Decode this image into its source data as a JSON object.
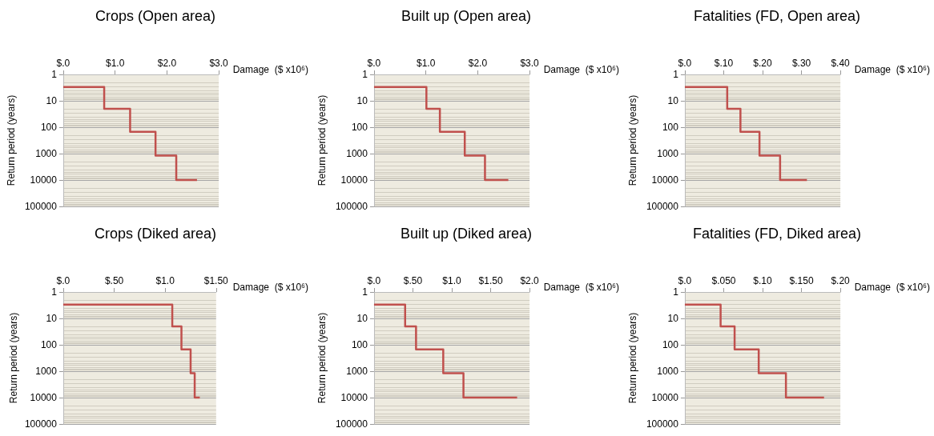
{
  "chart_data": [
    {
      "type": "step",
      "title": "Crops (Open area)",
      "xlabel": "Damage  ($ x10⁶)",
      "ylabel": "Return period (years)",
      "x": [
        0,
        0.79,
        1.29,
        1.78,
        2.18,
        2.58
      ],
      "series": [
        {
          "color": "#c0504d",
          "values": [
            3,
            20,
            150,
            1200,
            10000,
            10000
          ]
        }
      ],
      "xlim": [
        0,
        3
      ],
      "xticks": [
        {
          "value": 0,
          "label": "$.0"
        },
        {
          "value": 1,
          "label": "$1.0"
        },
        {
          "value": 2,
          "label": "$2.0"
        },
        {
          "value": 3,
          "label": "$3.0"
        }
      ],
      "ylim": [
        100000,
        1
      ],
      "yticks": [
        1,
        10,
        100,
        1000,
        10000,
        100000
      ],
      "log": "y",
      "grid": "y",
      "marker": "none",
      "line_style": "solid"
    },
    {
      "type": "step",
      "title": "Built up (Open area)",
      "xlabel": "Damage  ($ x10⁶)",
      "ylabel": "Return period (years)",
      "x": [
        0,
        1.01,
        1.27,
        1.75,
        2.14,
        2.59
      ],
      "series": [
        {
          "color": "#c0504d",
          "values": [
            3,
            20,
            150,
            1200,
            10000,
            10000
          ]
        }
      ],
      "xlim": [
        0,
        3
      ],
      "xticks": [
        {
          "value": 0,
          "label": "$.0"
        },
        {
          "value": 1,
          "label": "$1.0"
        },
        {
          "value": 2,
          "label": "$2.0"
        },
        {
          "value": 3,
          "label": "$3.0"
        }
      ],
      "ylim": [
        100000,
        1
      ],
      "yticks": [
        1,
        10,
        100,
        1000,
        10000,
        100000
      ],
      "log": "y",
      "grid": "y",
      "marker": "none",
      "line_style": "solid"
    },
    {
      "type": "step",
      "title": "Fatalities (FD, Open area)",
      "xlabel": "Damage  ($ x10⁶)",
      "ylabel": "Return period (years)",
      "x": [
        0,
        0.109,
        0.143,
        0.192,
        0.245,
        0.314
      ],
      "series": [
        {
          "color": "#c0504d",
          "values": [
            3,
            20,
            150,
            1200,
            10000,
            10000
          ]
        }
      ],
      "xlim": [
        0,
        0.4
      ],
      "xticks": [
        {
          "value": 0,
          "label": "$.0"
        },
        {
          "value": 0.1,
          "label": "$.10"
        },
        {
          "value": 0.2,
          "label": "$.20"
        },
        {
          "value": 0.3,
          "label": "$.30"
        },
        {
          "value": 0.4,
          "label": "$.40"
        }
      ],
      "ylim": [
        100000,
        1
      ],
      "yticks": [
        1,
        10,
        100,
        1000,
        10000,
        100000
      ],
      "log": "y",
      "grid": "y",
      "marker": "none",
      "line_style": "solid"
    },
    {
      "type": "step",
      "title": "Crops (Diked area)",
      "xlabel": "Damage  ($ x10⁶)",
      "ylabel": "Return period (years)",
      "x": [
        0,
        1.07,
        1.16,
        1.25,
        1.29,
        1.34
      ],
      "series": [
        {
          "color": "#c0504d",
          "values": [
            3,
            20,
            150,
            1200,
            10000,
            10000
          ]
        }
      ],
      "xlim": [
        0,
        1.5
      ],
      "xticks": [
        {
          "value": 0,
          "label": "$.0"
        },
        {
          "value": 0.5,
          "label": "$.50"
        },
        {
          "value": 1,
          "label": "$1.0"
        },
        {
          "value": 1.5,
          "label": "$1.50"
        }
      ],
      "ylim": [
        100000,
        1
      ],
      "yticks": [
        1,
        10,
        100,
        1000,
        10000,
        100000
      ],
      "log": "y",
      "grid": "y",
      "marker": "none",
      "line_style": "solid"
    },
    {
      "type": "step",
      "title": "Built up (Diked area)",
      "xlabel": "Damage  ($ x10⁶)",
      "ylabel": "Return period (years)",
      "x": [
        0,
        0.4,
        0.54,
        0.89,
        1.15,
        1.84
      ],
      "series": [
        {
          "color": "#c0504d",
          "values": [
            3,
            20,
            150,
            1200,
            10000,
            10000
          ]
        }
      ],
      "xlim": [
        0,
        2
      ],
      "xticks": [
        {
          "value": 0,
          "label": "$.0"
        },
        {
          "value": 0.5,
          "label": "$.50"
        },
        {
          "value": 1,
          "label": "$1.0"
        },
        {
          "value": 1.5,
          "label": "$1.50"
        },
        {
          "value": 2,
          "label": "$2.0"
        }
      ],
      "ylim": [
        100000,
        1
      ],
      "yticks": [
        1,
        10,
        100,
        1000,
        10000,
        100000
      ],
      "log": "y",
      "grid": "y",
      "marker": "none",
      "line_style": "solid"
    },
    {
      "type": "step",
      "title": "Fatalities (FD, Diked area)",
      "xlabel": "Damage  ($ x10⁶)",
      "ylabel": "Return period (years)",
      "x": [
        0,
        0.046,
        0.064,
        0.095,
        0.13,
        0.179
      ],
      "series": [
        {
          "color": "#c0504d",
          "values": [
            3,
            20,
            150,
            1200,
            10000,
            10000
          ]
        }
      ],
      "xlim": [
        0,
        0.2
      ],
      "xticks": [
        {
          "value": 0,
          "label": "$.0"
        },
        {
          "value": 0.05,
          "label": "$.050"
        },
        {
          "value": 0.1,
          "label": "$.10"
        },
        {
          "value": 0.15,
          "label": "$.150"
        },
        {
          "value": 0.2,
          "label": "$.20"
        }
      ],
      "ylim": [
        100000,
        1
      ],
      "yticks": [
        1,
        10,
        100,
        1000,
        10000,
        100000
      ],
      "log": "y",
      "grid": "y",
      "marker": "none",
      "line_style": "solid"
    }
  ]
}
